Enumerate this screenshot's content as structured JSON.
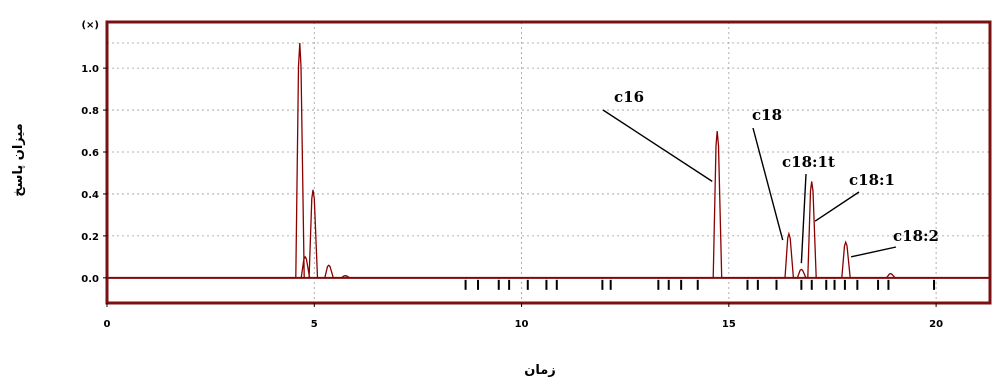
{
  "chart_data": {
    "type": "line",
    "xlabel": "زمان",
    "ylabel": "میزان پاسخ",
    "xlim": [
      0,
      21.3
    ],
    "ylim": [
      -0.12,
      1.22
    ],
    "grid": true,
    "x_ticks": [
      0,
      5,
      10,
      15,
      20
    ],
    "x_tick_labels": [
      "0",
      "5",
      "10",
      "15",
      "20"
    ],
    "y_ticks": [
      0.0,
      0.2,
      0.4,
      0.6,
      0.8,
      1.0
    ],
    "y_tick_labels": [
      "0.0",
      "0.2",
      "0.4",
      "0.6",
      "0.8",
      "1.0"
    ],
    "y_top_label": "(×)",
    "series": [
      {
        "peaks": [
          {
            "x": 4.65,
            "y": 1.12
          },
          {
            "x": 4.78,
            "y": 0.1
          },
          {
            "x": 4.97,
            "y": 0.42
          },
          {
            "x": 5.35,
            "y": 0.06
          },
          {
            "x": 5.75,
            "y": 0.01
          },
          {
            "x": 14.72,
            "y": 0.7
          },
          {
            "x": 16.45,
            "y": 0.21
          },
          {
            "x": 16.75,
            "y": 0.04
          },
          {
            "x": 17.0,
            "y": 0.46
          },
          {
            "x": 17.82,
            "y": 0.17
          },
          {
            "x": 18.9,
            "y": 0.02
          }
        ]
      }
    ],
    "baseline_markers_x": [
      8.65,
      8.95,
      9.45,
      9.7,
      10.15,
      10.6,
      10.85,
      11.95,
      12.15,
      13.3,
      13.55,
      13.85,
      14.25,
      15.45,
      15.7,
      16.15,
      16.75,
      17.0,
      17.35,
      17.55,
      17.8,
      18.1,
      18.6,
      18.85,
      19.95
    ],
    "annotations": [
      {
        "text": "c16",
        "target_x": 14.6,
        "target_y": 0.46
      },
      {
        "text": "c18",
        "target_x": 16.3,
        "target_y": 0.18
      },
      {
        "text": "c18:1t",
        "target_x": 16.75,
        "target_y": 0.07
      },
      {
        "text": "c18:1",
        "target_x": 17.08,
        "target_y": 0.27
      },
      {
        "text": "c18:2",
        "target_x": 17.95,
        "target_y": 0.1
      }
    ]
  },
  "colors": {
    "frame": "#7a1010",
    "line": "#8b0000",
    "grid": "#9a9a9a",
    "marker": "#000000"
  }
}
